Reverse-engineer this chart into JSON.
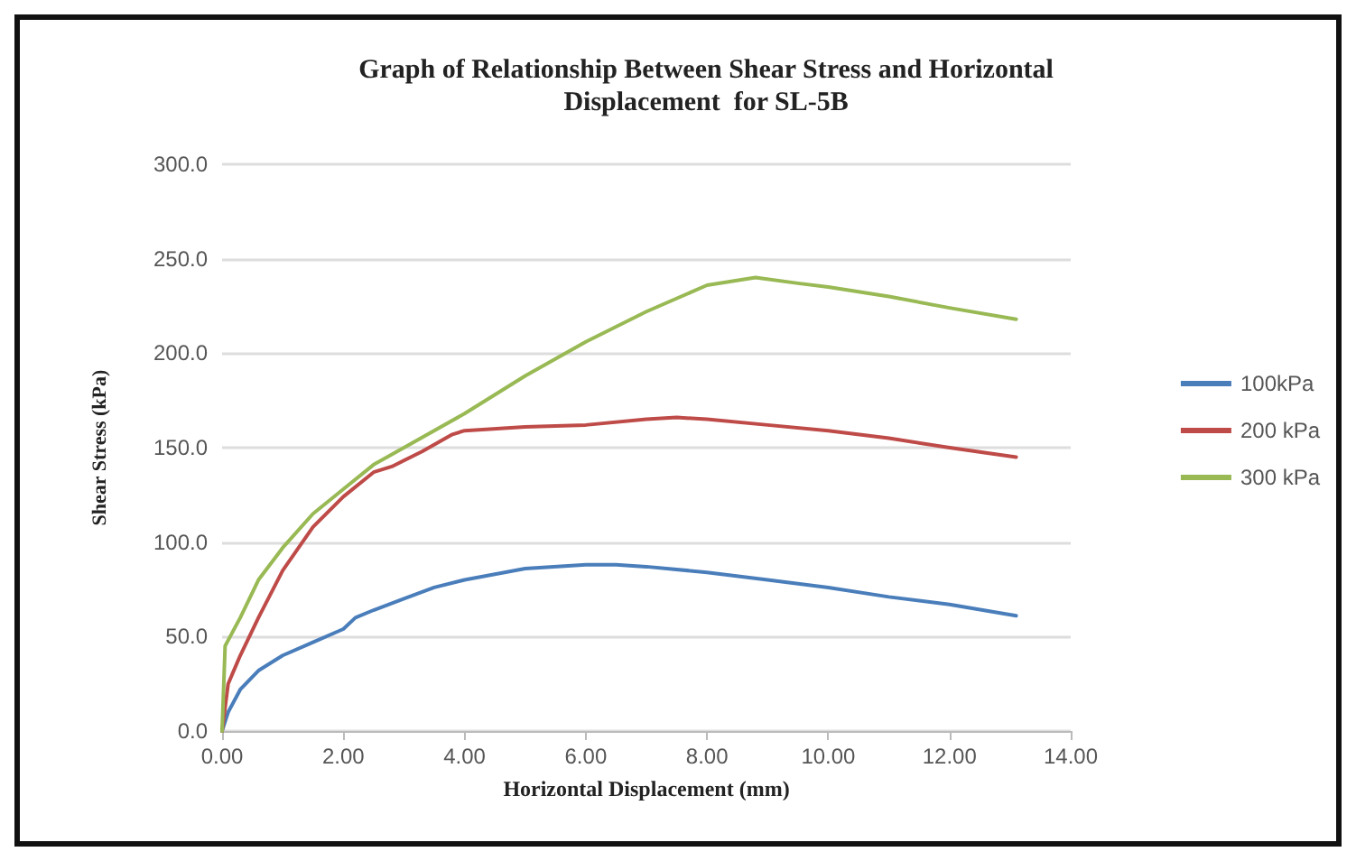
{
  "chart_data": {
    "type": "line",
    "title": "Graph of Relationship Between Shear Stress and Horizontal\nDisplacement  for SL-5B",
    "xlabel": "Horizontal Displacement (mm)",
    "ylabel": "Shear Stress (kPa)",
    "xlim": [
      0,
      14
    ],
    "xticks": [
      {
        "value": 0,
        "label": "0.00"
      },
      {
        "value": 2,
        "label": "2.00"
      },
      {
        "value": 4,
        "label": "4.00"
      },
      {
        "value": 6,
        "label": "6.00"
      },
      {
        "value": 8,
        "label": "8.00"
      },
      {
        "value": 10,
        "label": "10.00"
      },
      {
        "value": 12,
        "label": "12.00"
      },
      {
        "value": 14,
        "label": "14.00"
      }
    ],
    "ylim": [
      0,
      300
    ],
    "yticks": [
      {
        "value": 0,
        "label": "0.0"
      },
      {
        "value": 50,
        "label": "50.0"
      },
      {
        "value": 100,
        "label": "100.0"
      },
      {
        "value": 150,
        "label": "150.0"
      },
      {
        "value": 200,
        "label": "200.0"
      },
      {
        "value": 250,
        "label": "250.0"
      },
      {
        "value": 300,
        "label": "300.0"
      }
    ],
    "grid": "y",
    "legend": "right",
    "marker": "none",
    "line_style": "solid",
    "series": [
      {
        "name": "100kPa",
        "color": "#4a7ebb",
        "x": [
          0,
          0.1,
          0.3,
          0.6,
          1,
          1.5,
          2,
          2.2,
          2.5,
          3,
          3.5,
          4,
          5,
          6,
          6.5,
          7,
          8,
          9,
          10,
          11,
          12,
          13.1
        ],
        "values": [
          0,
          10,
          22,
          32,
          40,
          47,
          54,
          60,
          64,
          70,
          76,
          80,
          86,
          88,
          88,
          87,
          84,
          80,
          76,
          71,
          67,
          61
        ]
      },
      {
        "name": "200 kPa",
        "color": "#be4b48",
        "x": [
          0,
          0.1,
          0.3,
          0.6,
          1,
          1.5,
          2,
          2.5,
          2.8,
          3.3,
          3.8,
          4,
          5,
          6,
          7,
          7.5,
          8,
          9,
          10,
          11,
          12,
          13.1
        ],
        "values": [
          0,
          25,
          40,
          60,
          85,
          108,
          124,
          137,
          140,
          148,
          157,
          159,
          161,
          162,
          165,
          166,
          165,
          162,
          159,
          155,
          150,
          145
        ]
      },
      {
        "name": "300 kPa",
        "color": "#98b954",
        "x": [
          0,
          0.05,
          0.3,
          0.6,
          1,
          1.5,
          2,
          2.5,
          3,
          4,
          5,
          6,
          7,
          8,
          8.8,
          9.5,
          10,
          11,
          12,
          13.1
        ],
        "values": [
          0,
          45,
          60,
          80,
          97,
          115,
          128,
          141,
          150,
          168,
          188,
          206,
          222,
          236,
          240,
          237,
          235,
          230,
          224,
          218
        ]
      }
    ]
  }
}
